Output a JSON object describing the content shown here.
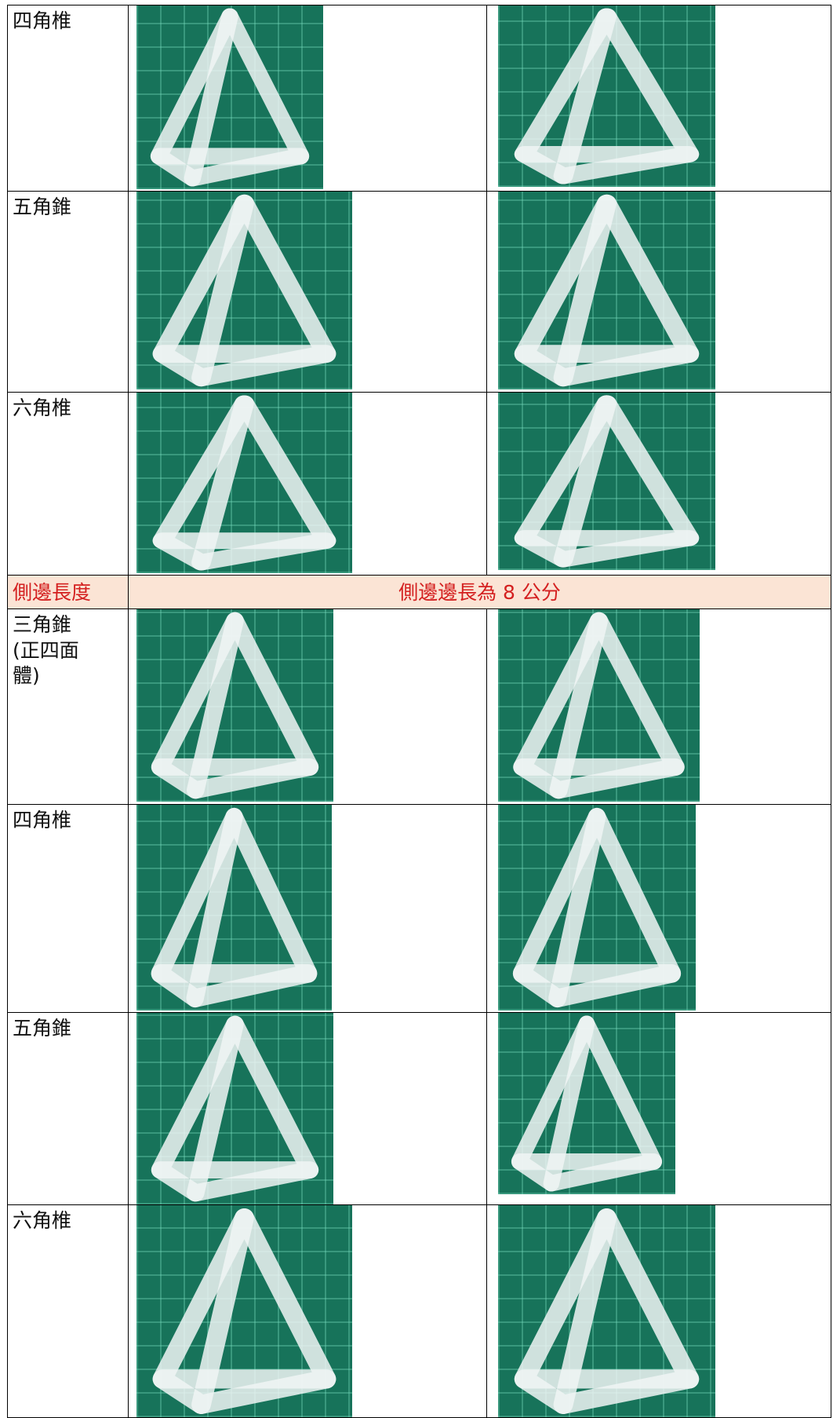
{
  "table": {
    "rows": [
      {
        "label": "四角椎"
      },
      {
        "label": "五角錐"
      },
      {
        "label": "六角椎"
      },
      {
        "label": "側邊長度",
        "text": "側邊邊長為 8 公分"
      },
      {
        "label": "三角錐\n(正四面\n體)"
      },
      {
        "label": "四角椎"
      },
      {
        "label": "五角錐"
      },
      {
        "label": "六角椎"
      }
    ]
  }
}
